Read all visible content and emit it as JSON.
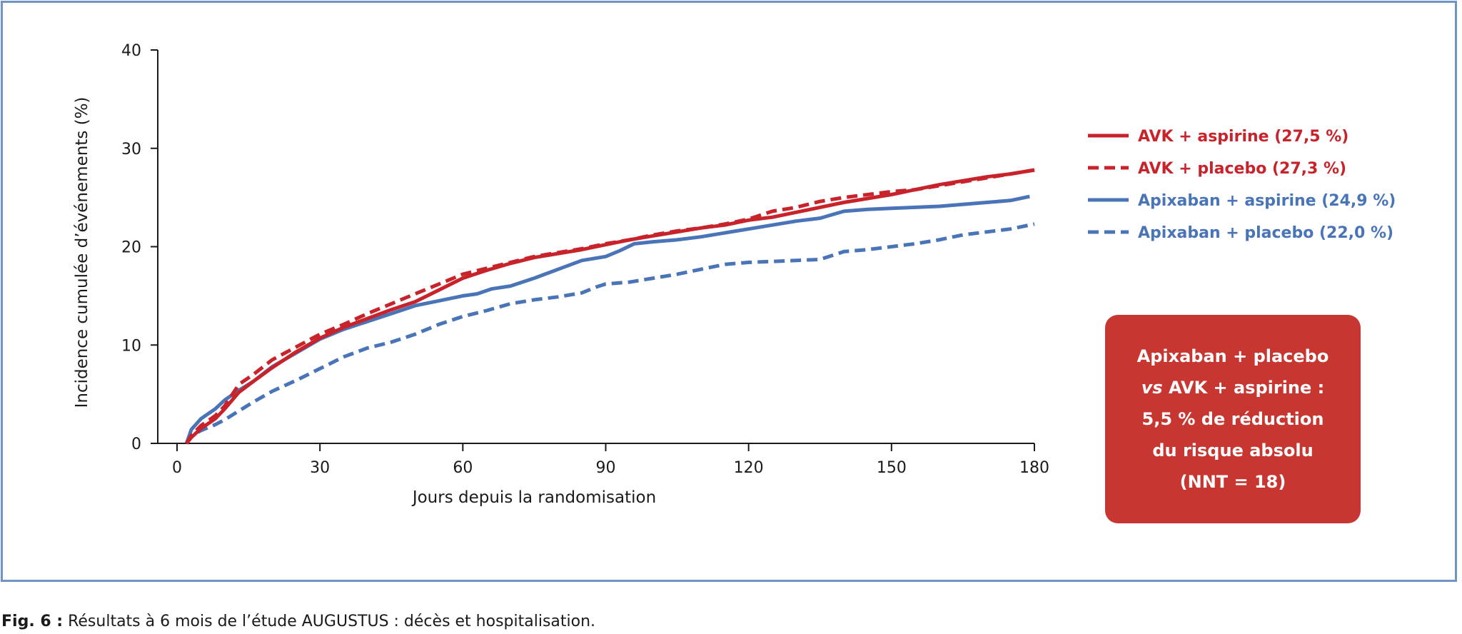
{
  "chart_data": {
    "type": "line",
    "title": "",
    "xlabel": "Jours depuis la randomisation",
    "ylabel": "Incidence cumulée d’événements (%)",
    "xlim": [
      0,
      180
    ],
    "ylim": [
      0,
      40
    ],
    "xticks": [
      0,
      30,
      60,
      90,
      120,
      150,
      180
    ],
    "yticks": [
      0,
      10,
      20,
      30,
      40
    ],
    "grid": false,
    "legend_position": "right",
    "series": [
      {
        "name": "AVK + aspirine (27,5 %)",
        "color": "#c8232b",
        "style": "solid",
        "x": [
          2,
          3,
          5,
          8,
          10,
          13,
          16,
          20,
          25,
          30,
          35,
          40,
          45,
          50,
          55,
          60,
          65,
          70,
          75,
          80,
          85,
          90,
          95,
          100,
          105,
          110,
          115,
          120,
          125,
          130,
          135,
          140,
          145,
          150,
          155,
          160,
          165,
          170,
          175,
          180
        ],
        "y": [
          0,
          0.6,
          1.5,
          2.5,
          3.5,
          5.2,
          6.3,
          7.7,
          9.3,
          10.7,
          11.8,
          12.7,
          13.6,
          14.4,
          15.6,
          16.8,
          17.6,
          18.3,
          18.9,
          19.3,
          19.7,
          20.2,
          20.7,
          21.1,
          21.5,
          21.9,
          22.2,
          22.7,
          23.0,
          23.5,
          24.0,
          24.5,
          24.9,
          25.3,
          25.8,
          26.3,
          26.7,
          27.1,
          27.4,
          27.8
        ]
      },
      {
        "name": "AVK + placebo (27,3 %)",
        "color": "#c8232b",
        "style": "dashed",
        "x": [
          2,
          3,
          5,
          8,
          10,
          13,
          16,
          20,
          25,
          30,
          35,
          40,
          45,
          50,
          55,
          60,
          65,
          70,
          75,
          80,
          85,
          90,
          95,
          100,
          105,
          110,
          115,
          120,
          125,
          130,
          135,
          140,
          145,
          150,
          155,
          160,
          165,
          170,
          175,
          180
        ],
        "y": [
          0,
          0.8,
          1.8,
          2.8,
          3.8,
          6.0,
          7.0,
          8.5,
          9.8,
          11.1,
          12.1,
          13.2,
          14.2,
          15.2,
          16.2,
          17.2,
          17.8,
          18.4,
          19.0,
          19.4,
          19.8,
          20.3,
          20.7,
          21.2,
          21.6,
          21.9,
          22.3,
          22.8,
          23.6,
          24.0,
          24.6,
          25.0,
          25.3,
          25.6,
          25.8,
          26.2,
          26.6,
          27.0,
          27.4,
          27.8
        ]
      },
      {
        "name": "Apixaban + aspirine (24,9 %)",
        "color": "#4a74b8",
        "style": "solid",
        "x": [
          2,
          3,
          5,
          8,
          10,
          13,
          16,
          20,
          25,
          30,
          35,
          40,
          45,
          50,
          55,
          60,
          63,
          66,
          70,
          75,
          80,
          85,
          90,
          93,
          96,
          100,
          105,
          110,
          115,
          120,
          125,
          130,
          135,
          140,
          145,
          150,
          155,
          160,
          165,
          170,
          175,
          179
        ],
        "y": [
          0,
          1.4,
          2.5,
          3.5,
          4.4,
          5.4,
          6.3,
          7.8,
          9.2,
          10.6,
          11.6,
          12.4,
          13.2,
          14.0,
          14.5,
          15.0,
          15.2,
          15.7,
          16.0,
          16.8,
          17.7,
          18.6,
          19.0,
          19.6,
          20.3,
          20.5,
          20.7,
          21.0,
          21.4,
          21.8,
          22.2,
          22.6,
          22.9,
          23.6,
          23.8,
          23.9,
          24.0,
          24.1,
          24.3,
          24.5,
          24.7,
          25.1
        ]
      },
      {
        "name": "Apixaban + placebo (22,0 %)",
        "color": "#4a74b8",
        "style": "dashed",
        "x": [
          2,
          3,
          5,
          8,
          10,
          13,
          16,
          20,
          25,
          30,
          35,
          40,
          45,
          50,
          55,
          60,
          65,
          70,
          75,
          80,
          85,
          88,
          90,
          95,
          100,
          105,
          110,
          115,
          120,
          125,
          130,
          135,
          140,
          145,
          150,
          155,
          160,
          165,
          170,
          175,
          180
        ],
        "y": [
          0,
          0.8,
          1.3,
          1.9,
          2.4,
          3.3,
          4.2,
          5.3,
          6.4,
          7.6,
          8.8,
          9.7,
          10.3,
          11.1,
          12.1,
          12.9,
          13.5,
          14.2,
          14.6,
          14.9,
          15.3,
          15.9,
          16.2,
          16.4,
          16.8,
          17.2,
          17.7,
          18.2,
          18.4,
          18.5,
          18.6,
          18.7,
          19.5,
          19.7,
          20.0,
          20.3,
          20.7,
          21.2,
          21.5,
          21.8,
          22.3
        ]
      }
    ]
  },
  "callout": {
    "line1": "Apixaban + placebo",
    "line2_italic": "vs",
    "line2_rest": " AVK + aspirine :",
    "line3": "5,5 % de réduction",
    "line4": "du risque absolu",
    "line5": "(NNT = 18)"
  },
  "caption": {
    "label": "Fig. 6 :",
    "text": " Résultats à 6 mois de l’étude AUGUSTUS : décès et hospitalisation."
  }
}
